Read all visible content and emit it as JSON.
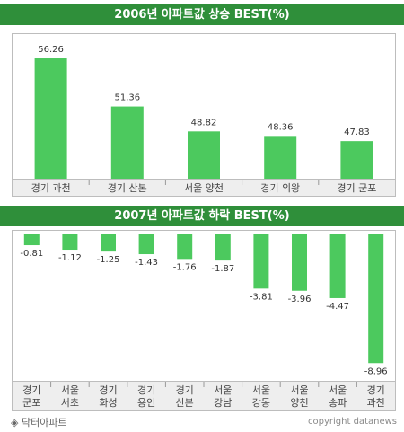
{
  "bar_color": "#4cc95e",
  "banner_color": "#2f8f3a",
  "chart_data": [
    {
      "type": "bar",
      "title": "2006년 아파트값 상승 BEST(%)",
      "categories": [
        "경기 과천",
        "경기 산본",
        "서울 양천",
        "경기 의왕",
        "경기 군포"
      ],
      "values": [
        56.26,
        51.36,
        48.82,
        48.36,
        47.83
      ],
      "value_labels": [
        "56.26",
        "51.36",
        "48.82",
        "48.36",
        "47.83"
      ],
      "ylim": [
        44,
        58
      ]
    },
    {
      "type": "bar",
      "title": "2007년 아파트값 하락 BEST(%)",
      "categories": [
        [
          "경기",
          "군포"
        ],
        [
          "서울",
          "서초"
        ],
        [
          "경기",
          "화성"
        ],
        [
          "경기",
          "용인"
        ],
        [
          "경기",
          "산본"
        ],
        [
          "서울",
          "강남"
        ],
        [
          "서울",
          "강동"
        ],
        [
          "서울",
          "양천"
        ],
        [
          "서울",
          "송파"
        ],
        [
          "경기",
          "과천"
        ]
      ],
      "values": [
        -0.81,
        -1.12,
        -1.25,
        -1.43,
        -1.76,
        -1.87,
        -3.81,
        -3.96,
        -4.47,
        -8.96
      ],
      "value_labels": [
        "-0.81",
        "-1.12",
        "-1.25",
        "-1.43",
        "-1.76",
        "-1.87",
        "-3.81",
        "-3.96",
        "-4.47",
        "-8.96"
      ],
      "ylim": [
        -10,
        0
      ]
    }
  ],
  "footer": {
    "source": "◈ 닥터아파트",
    "credit": "copyright datanews"
  }
}
